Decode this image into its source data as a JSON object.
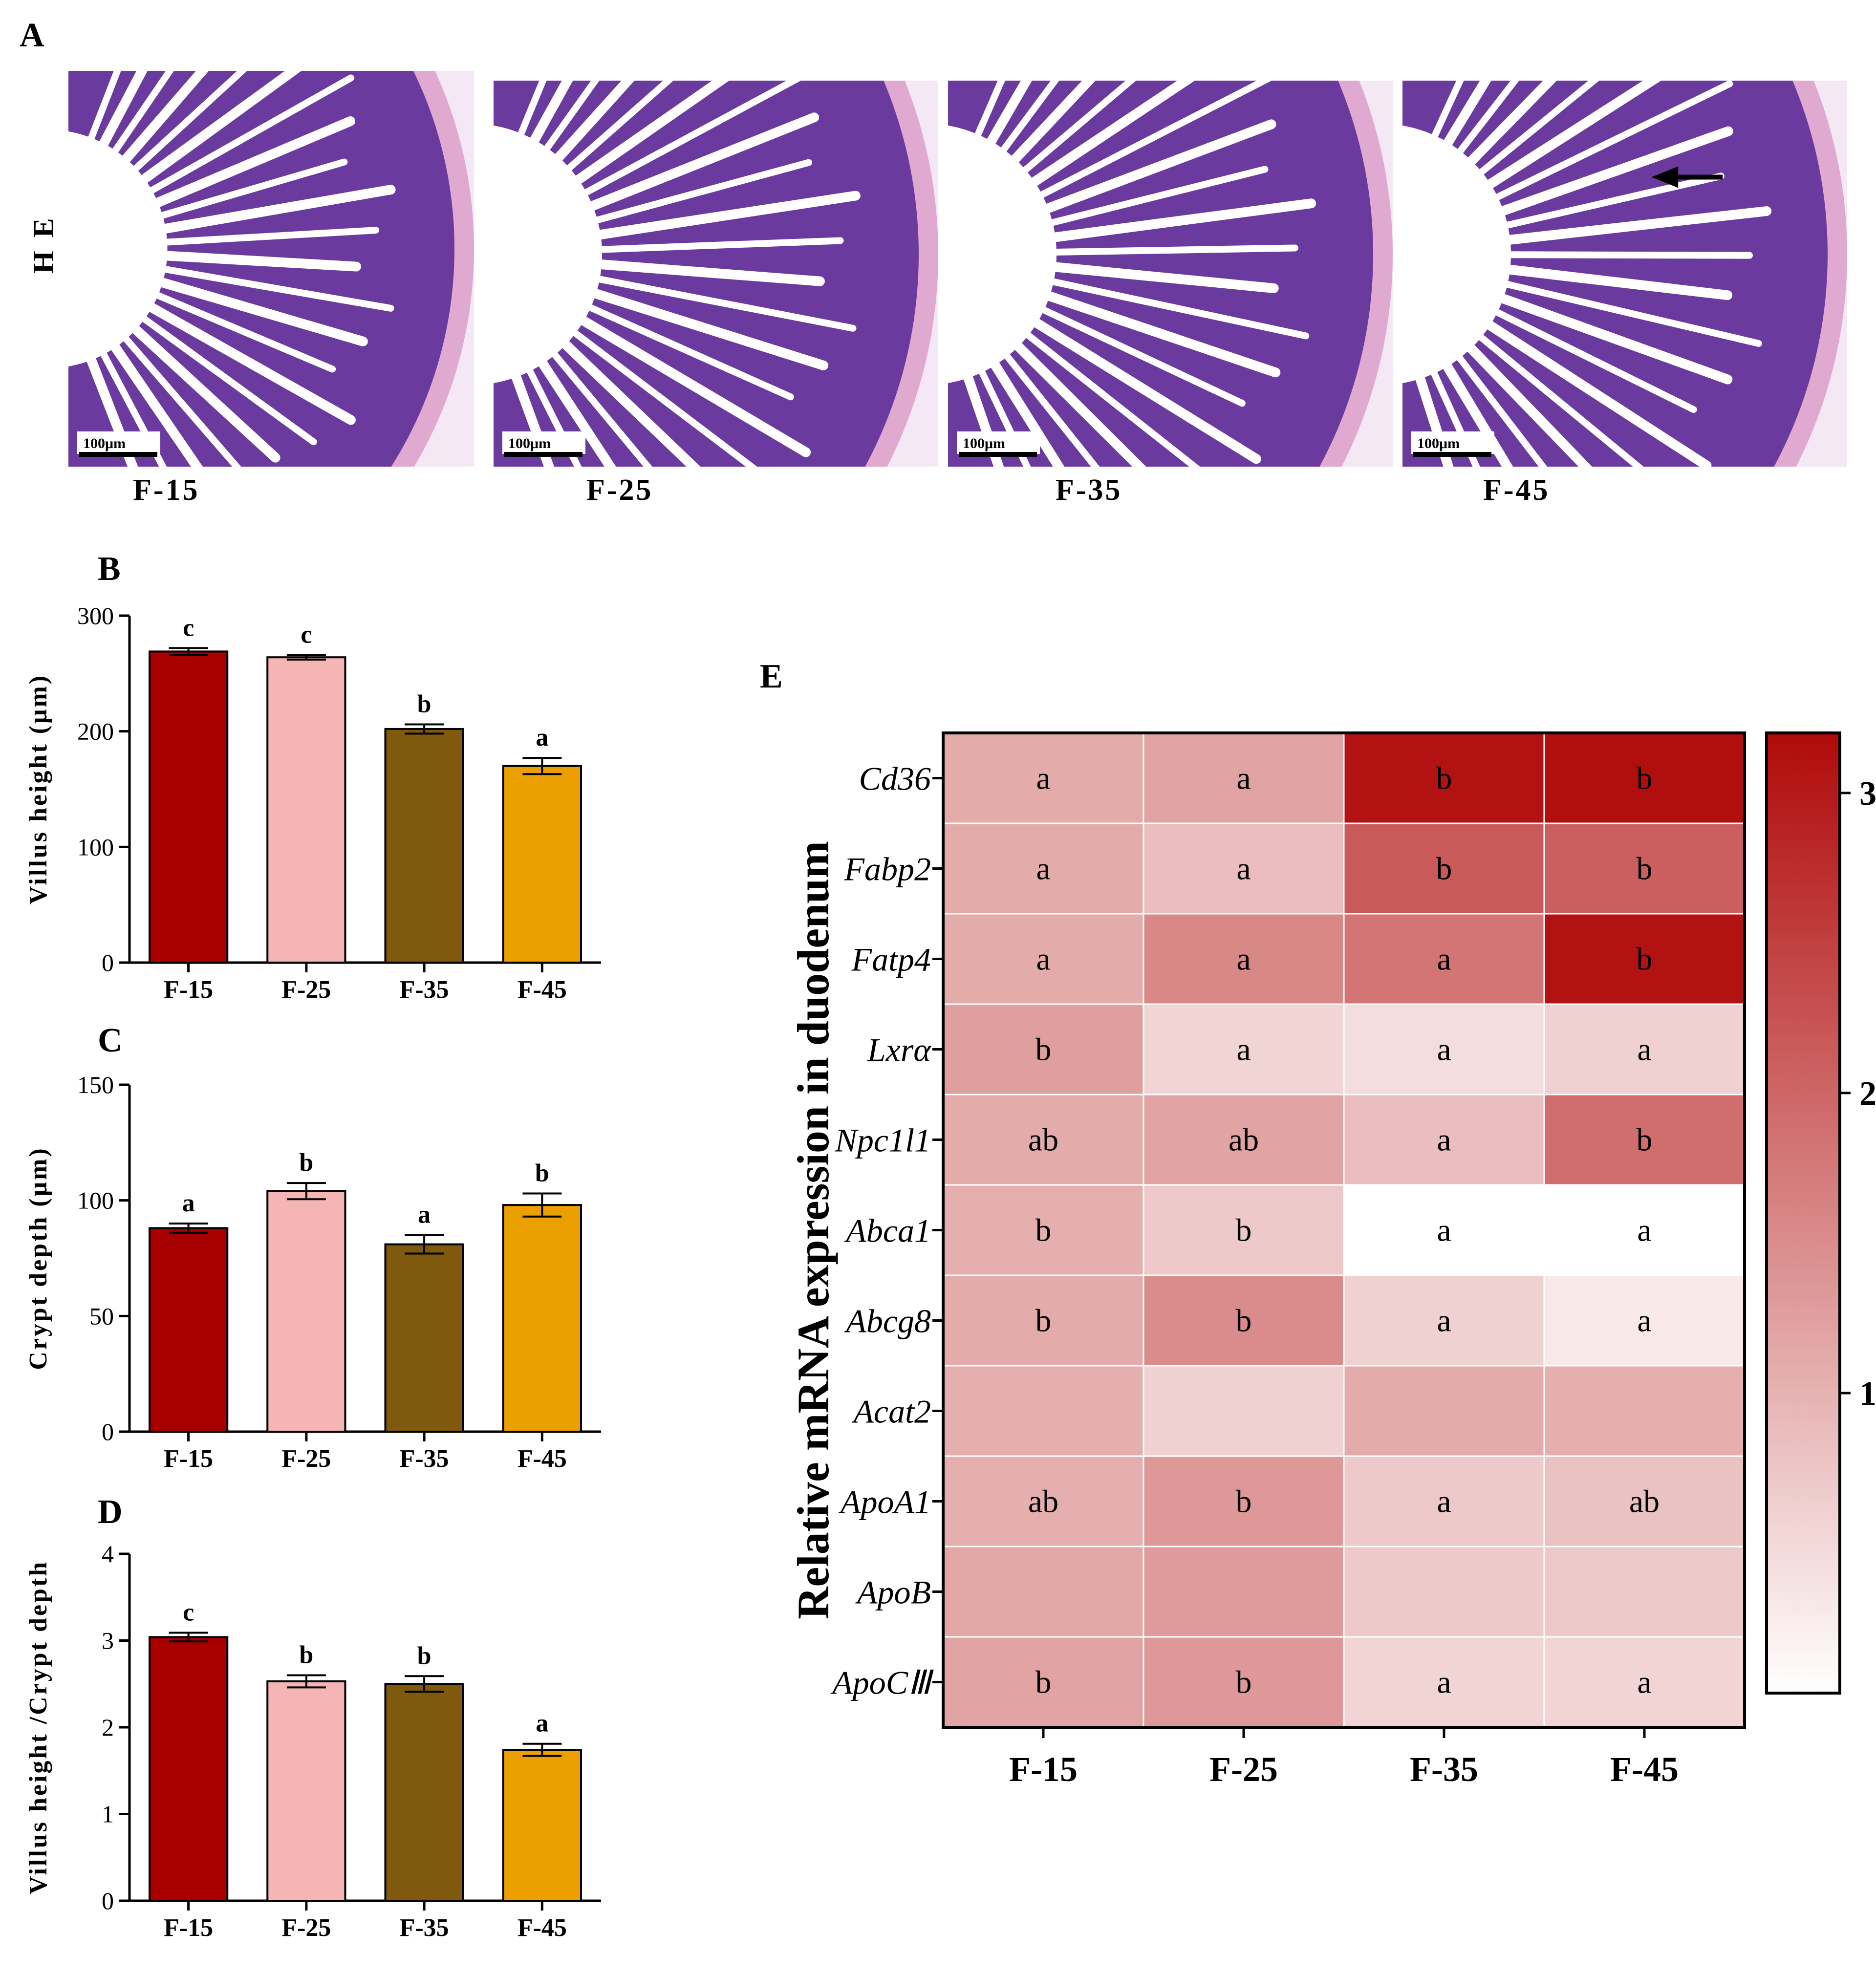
{
  "panels": {
    "a": "A",
    "b": "B",
    "c": "C",
    "d": "D",
    "e": "E"
  },
  "histology": {
    "stain_label": "H E",
    "scale_bar": "100μm",
    "images": [
      {
        "label": "F-15",
        "arrow": false
      },
      {
        "label": "F-25",
        "arrow": false
      },
      {
        "label": "F-35",
        "arrow": false
      },
      {
        "label": "F-45",
        "arrow": true
      }
    ]
  },
  "colors": {
    "F-15": "#A80000",
    "F-25": "#F6B5B5",
    "F-35": "#7F5A0E",
    "F-45": "#ECA000",
    "histo_tissue": "#6B3A9E",
    "histo_bg": "#F3E8F4",
    "heat_low": "#FFFFFF",
    "heat_high": "#B00A0A"
  },
  "chart_data": [
    {
      "id": "B",
      "type": "bar",
      "categories": [
        "F-15",
        "F-25",
        "F-35",
        "F-45"
      ],
      "values": [
        269,
        264,
        202,
        170
      ],
      "errors": [
        3,
        2,
        4,
        7
      ],
      "letters": [
        "c",
        "c",
        "b",
        "a"
      ],
      "ylabel": "Villus height (μm)",
      "ylim": [
        0,
        300
      ],
      "yticks": [
        "0",
        "100",
        "200",
        "300"
      ]
    },
    {
      "id": "C",
      "type": "bar",
      "categories": [
        "F-15",
        "F-25",
        "F-35",
        "F-45"
      ],
      "values": [
        88,
        104,
        81,
        98
      ],
      "errors": [
        2,
        3.5,
        4,
        5
      ],
      "letters": [
        "a",
        "b",
        "a",
        "b"
      ],
      "ylabel": "Crypt depth (μm)",
      "ylim": [
        0,
        150
      ],
      "yticks": [
        "0",
        "50",
        "100",
        "150"
      ]
    },
    {
      "id": "D",
      "type": "bar",
      "categories": [
        "F-15",
        "F-25",
        "F-35",
        "F-45"
      ],
      "values": [
        3.04,
        2.53,
        2.5,
        1.74
      ],
      "errors": [
        0.05,
        0.07,
        0.09,
        0.07
      ],
      "letters": [
        "c",
        "b",
        "b",
        "a"
      ],
      "ylabel": "Villus height /Crypt depth",
      "ylim": [
        0,
        4
      ],
      "yticks": [
        "0",
        "1",
        "2",
        "3",
        "4"
      ]
    },
    {
      "id": "E",
      "type": "heatmap",
      "columns": [
        "F-15",
        "F-25",
        "F-35",
        "F-45"
      ],
      "rows": [
        "Cd36",
        "Fabp2",
        "Fatp4",
        "Lxrα",
        "Npc1l1",
        "Abca1",
        "Abcg8",
        "Acat2",
        "ApoA1",
        "ApoB",
        "ApoCⅢ"
      ],
      "values": [
        [
          1.1,
          1.2,
          3.1,
          3.15
        ],
        [
          1.1,
          0.85,
          2.15,
          2.1
        ],
        [
          1.1,
          1.55,
          1.8,
          3.1
        ],
        [
          1.25,
          0.55,
          0.45,
          0.6
        ],
        [
          1.1,
          1.2,
          0.85,
          1.9
        ],
        [
          1.05,
          0.7,
          0.0,
          0.0
        ],
        [
          1.1,
          1.5,
          0.6,
          0.3
        ],
        [
          1.05,
          0.6,
          1.1,
          1.05
        ],
        [
          1.05,
          1.35,
          0.7,
          0.8
        ],
        [
          1.15,
          1.3,
          0.7,
          0.7
        ],
        [
          1.2,
          1.35,
          0.55,
          0.55
        ]
      ],
      "letters": [
        [
          "a",
          "a",
          "b",
          "b"
        ],
        [
          "a",
          "a",
          "b",
          "b"
        ],
        [
          "a",
          "a",
          "a",
          "b"
        ],
        [
          "b",
          "a",
          "a",
          "a"
        ],
        [
          "ab",
          "ab",
          "a",
          "b"
        ],
        [
          "b",
          "b",
          "a",
          "a"
        ],
        [
          "b",
          "b",
          "a",
          "a"
        ],
        [
          "",
          "",
          "",
          ""
        ],
        [
          "ab",
          "b",
          "a",
          "ab"
        ],
        [
          "",
          "",
          "",
          ""
        ],
        [
          "b",
          "b",
          "a",
          "a"
        ]
      ],
      "ylabel": "Relative mRNA expression in duodenum",
      "colorbar_range": [
        0,
        3.2
      ],
      "colorbar_ticks": [
        "1",
        "2",
        "3"
      ]
    }
  ]
}
